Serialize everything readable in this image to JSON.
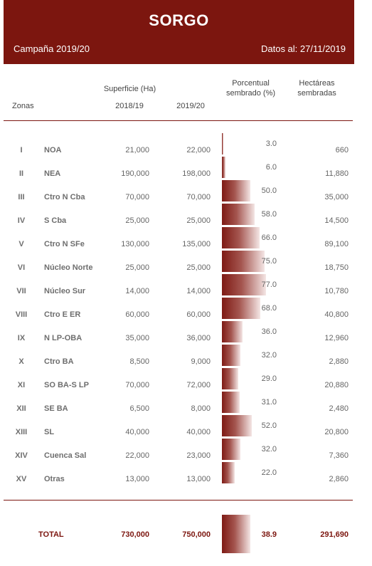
{
  "header": {
    "title": "SORGO",
    "campaign": "Campaña 2019/20",
    "date": "Datos al:  27/11/2019"
  },
  "columns": {
    "superficie": "Superficie (Ha)",
    "year1": "2018/19",
    "year2": "2019/20",
    "zonas": "Zonas",
    "porcentual_l1": "Porcentual",
    "porcentual_l2": "sembrado (%)",
    "hectareas_l1": "Hectáreas",
    "hectareas_l2": "sembradas"
  },
  "rows": [
    {
      "roman": "I",
      "zone": "NOA",
      "s1819": "21,000",
      "s1920": "22,000",
      "pct": "3.0",
      "pct_value": 3.0,
      "ha": "660"
    },
    {
      "roman": "II",
      "zone": "NEA",
      "s1819": "190,000",
      "s1920": "198,000",
      "pct": "6.0",
      "pct_value": 6.0,
      "ha": "11,880"
    },
    {
      "roman": "III",
      "zone": "Ctro N Cba",
      "s1819": "70,000",
      "s1920": "70,000",
      "pct": "50.0",
      "pct_value": 50.0,
      "ha": "35,000"
    },
    {
      "roman": "IV",
      "zone": "S Cba",
      "s1819": "25,000",
      "s1920": "25,000",
      "pct": "58.0",
      "pct_value": 58.0,
      "ha": "14,500"
    },
    {
      "roman": "V",
      "zone": "Ctro N SFe",
      "s1819": "130,000",
      "s1920": "135,000",
      "pct": "66.0",
      "pct_value": 66.0,
      "ha": "89,100"
    },
    {
      "roman": "VI",
      "zone": "Núcleo Norte",
      "s1819": "25,000",
      "s1920": "25,000",
      "pct": "75.0",
      "pct_value": 75.0,
      "ha": "18,750"
    },
    {
      "roman": "VII",
      "zone": "Núcleo Sur",
      "s1819": "14,000",
      "s1920": "14,000",
      "pct": "77.0",
      "pct_value": 77.0,
      "ha": "10,780"
    },
    {
      "roman": "VIII",
      "zone": "Ctro E ER",
      "s1819": "60,000",
      "s1920": "60,000",
      "pct": "68.0",
      "pct_value": 68.0,
      "ha": "40,800"
    },
    {
      "roman": "IX",
      "zone": "N LP-OBA",
      "s1819": "35,000",
      "s1920": "36,000",
      "pct": "36.0",
      "pct_value": 36.0,
      "ha": "12,960"
    },
    {
      "roman": "X",
      "zone": "Ctro BA",
      "s1819": "8,500",
      "s1920": "9,000",
      "pct": "32.0",
      "pct_value": 32.0,
      "ha": "2,880"
    },
    {
      "roman": "XI",
      "zone": "SO BA-S LP",
      "s1819": "70,000",
      "s1920": "72,000",
      "pct": "29.0",
      "pct_value": 29.0,
      "ha": "20,880"
    },
    {
      "roman": "XII",
      "zone": "SE BA",
      "s1819": "6,500",
      "s1920": "8,000",
      "pct": "31.0",
      "pct_value": 31.0,
      "ha": "2,480"
    },
    {
      "roman": "XIII",
      "zone": "SL",
      "s1819": "40,000",
      "s1920": "40,000",
      "pct": "52.0",
      "pct_value": 52.0,
      "ha": "20,800"
    },
    {
      "roman": "XIV",
      "zone": "Cuenca Sal",
      "s1819": "22,000",
      "s1920": "23,000",
      "pct": "32.0",
      "pct_value": 32.0,
      "ha": "7,360"
    },
    {
      "roman": "XV",
      "zone": "Otras",
      "s1819": "13,000",
      "s1920": "13,000",
      "pct": "22.0",
      "pct_value": 22.0,
      "ha": "2,860"
    }
  ],
  "total": {
    "label": "TOTAL",
    "s1819": "730,000",
    "s1920": "750,000",
    "pct": "38.9",
    "pct_value": 38.9,
    "ha": "291,690"
  },
  "colors": {
    "header_bg": "#7c160f",
    "bar_dark": "#7e1a14",
    "bar_light": "#f4e6e5"
  }
}
